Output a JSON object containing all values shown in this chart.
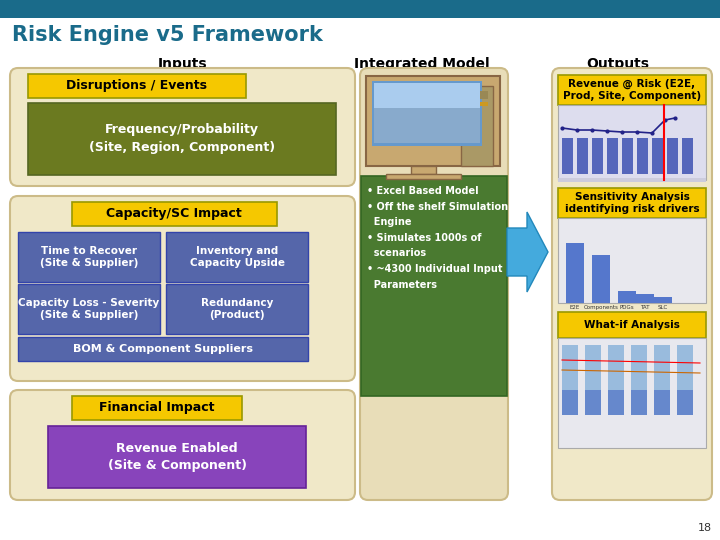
{
  "title": "Risk Engine v5 Framework",
  "title_color": "#1a6b8a",
  "header_bar_color": "#1a6b8a",
  "bg_color": "#ffffff",
  "col_headers": [
    "Inputs",
    "Integrated Model",
    "Outputs"
  ],
  "col_header_color": "#000000",
  "disruptions_label": "Disruptions / Events",
  "disruptions_bg": "#f5c800",
  "disruptions_text_color": "#000000",
  "freq_prob_label": "Frequency/Probability\n(Site, Region, Component)",
  "freq_prob_bg": "#6b7a20",
  "freq_prob_text_color": "#ffffff",
  "capacity_label": "Capacity/SC Impact",
  "capacity_bg": "#f5c800",
  "capacity_text_color": "#000000",
  "blue_boxes": [
    "Time to Recover\n(Site & Supplier)",
    "Inventory and\nCapacity Upside",
    "Capacity Loss - Severity\n(Site & Supplier)",
    "Redundancy\n(Product)"
  ],
  "blue_box_bg": "#5566aa",
  "blue_box_text_color": "#ffffff",
  "bom_label": "BOM & Component Suppliers",
  "bom_bg": "#5566aa",
  "bom_text_color": "#ffffff",
  "financial_label": "Financial Impact",
  "financial_bg": "#f5c800",
  "financial_text_color": "#000000",
  "revenue_enabled_label": "Revenue Enabled\n(Site & Component)",
  "revenue_enabled_bg": "#8844bb",
  "revenue_enabled_text_color": "#ffffff",
  "model_text_bg": "#4a7a30",
  "model_bullets": [
    "• Excel Based Model",
    "• Off the shelf Simulation\n  Engine",
    "• Simulates 1000s of\n  scenarios",
    "• ~4300 Individual Input\n  Parameters"
  ],
  "model_bullet_color": "#ffffff",
  "output_box1_label": "Revenue @ Risk (E2E,\nProd, Site, Component)",
  "output_box2_label": "Sensitivity Analysis\nidentifying risk drivers",
  "output_box3_label": "What-if Analysis",
  "output_label_bg": "#f5c800",
  "arrow_color": "#44aadd",
  "page_num": "18",
  "panel_bg": "#f0e8c8",
  "panel_edge": "#ccbb88",
  "im_panel_bg": "#e8ddb8"
}
